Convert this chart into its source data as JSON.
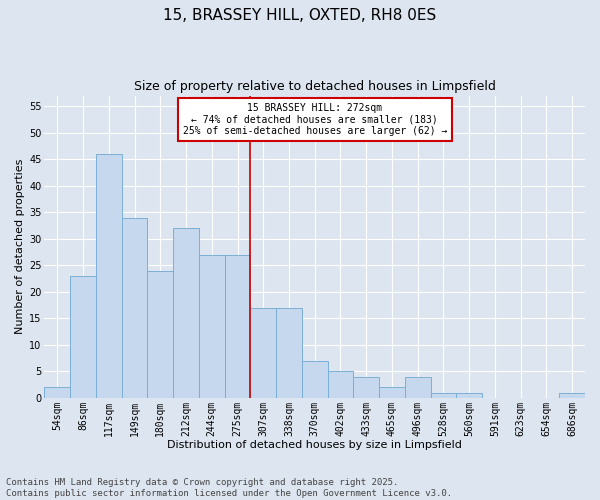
{
  "title": "15, BRASSEY HILL, OXTED, RH8 0ES",
  "subtitle": "Size of property relative to detached houses in Limpsfield",
  "xlabel": "Distribution of detached houses by size in Limpsfield",
  "ylabel": "Number of detached properties",
  "categories": [
    "54sqm",
    "86sqm",
    "117sqm",
    "149sqm",
    "180sqm",
    "212sqm",
    "244sqm",
    "275sqm",
    "307sqm",
    "338sqm",
    "370sqm",
    "402sqm",
    "433sqm",
    "465sqm",
    "496sqm",
    "528sqm",
    "560sqm",
    "591sqm",
    "623sqm",
    "654sqm",
    "686sqm"
  ],
  "values": [
    2,
    23,
    46,
    34,
    24,
    32,
    27,
    27,
    17,
    17,
    7,
    5,
    4,
    2,
    4,
    1,
    1,
    0,
    0,
    0,
    1
  ],
  "bar_color": "#c5d8ed",
  "bar_edge_color": "#7bafd4",
  "vline_x": 7.5,
  "vline_color": "#cc0000",
  "annotation_text": "15 BRASSEY HILL: 272sqm\n← 74% of detached houses are smaller (183)\n25% of semi-detached houses are larger (62) →",
  "annotation_box_color": "#ffffff",
  "annotation_box_edge": "#cc0000",
  "ylim": [
    0,
    57
  ],
  "yticks": [
    0,
    5,
    10,
    15,
    20,
    25,
    30,
    35,
    40,
    45,
    50,
    55
  ],
  "bg_color": "#dde5f0",
  "plot_bg_color": "#dde5f0",
  "grid_color": "#ffffff",
  "footer": "Contains HM Land Registry data © Crown copyright and database right 2025.\nContains public sector information licensed under the Open Government Licence v3.0.",
  "title_fontsize": 11,
  "subtitle_fontsize": 9,
  "xlabel_fontsize": 8,
  "ylabel_fontsize": 8,
  "tick_fontsize": 7,
  "annot_fontsize": 7,
  "footer_fontsize": 6.5
}
